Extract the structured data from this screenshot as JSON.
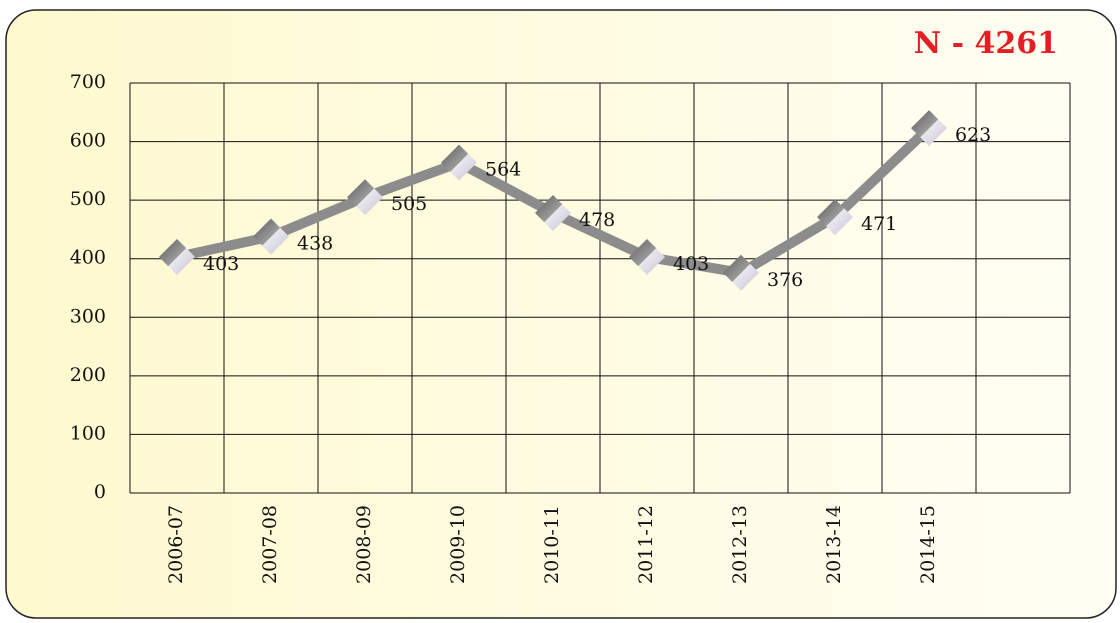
{
  "chart_data": {
    "type": "line",
    "title": "N - 4261",
    "categories": [
      "2006-07",
      "2007-08",
      "2008-09",
      "2009-10",
      "2010-11",
      "2011-12",
      "2012-13",
      "2013-14",
      "2014-15",
      null
    ],
    "values": [
      403,
      438,
      505,
      564,
      478,
      403,
      376,
      471,
      623,
      null
    ],
    "color": "#8c8c8c",
    "ylim": [
      0,
      700
    ],
    "yticks": [
      0,
      100,
      200,
      300,
      400,
      500,
      600,
      700
    ],
    "grid": true
  }
}
